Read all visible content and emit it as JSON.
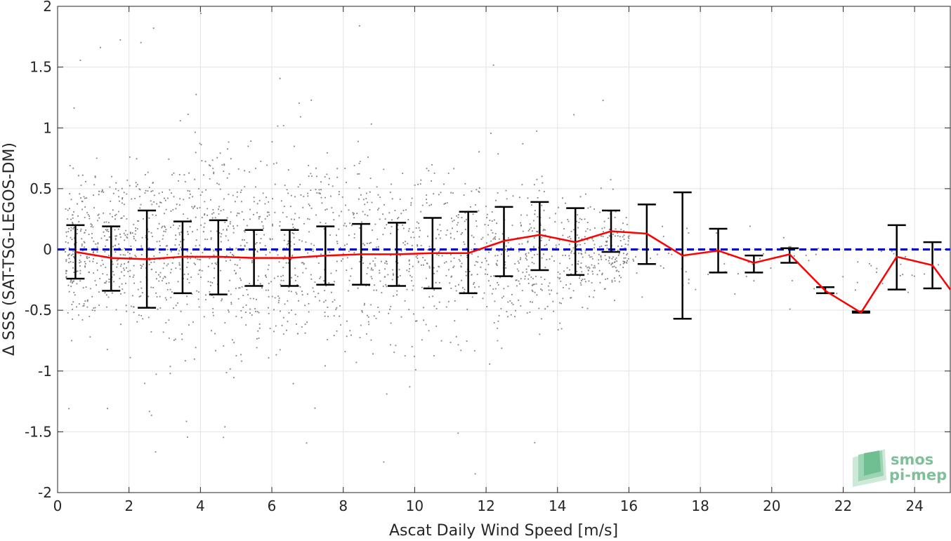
{
  "chart_data": {
    "type": "scatter",
    "xlabel": "Ascat Daily Wind Speed [m/s]",
    "ylabel": "Δ SSS (SAT-TSG-LEGOS-DM)",
    "xlim": [
      0,
      25
    ],
    "ylim": [
      -2,
      2
    ],
    "xticks": [
      0,
      2,
      4,
      6,
      8,
      10,
      12,
      14,
      16,
      18,
      20,
      22,
      24
    ],
    "yticks": [
      2,
      1.5,
      1,
      0.5,
      0,
      -0.5,
      -1,
      -1.5,
      -2
    ],
    "xtick_labels": [
      "0",
      "2",
      "4",
      "6",
      "8",
      "10",
      "12",
      "14",
      "16",
      "18",
      "20",
      "22",
      "24"
    ],
    "ytick_labels": [
      "2",
      "1.5",
      "1",
      "0.5",
      "0",
      "-0.5",
      "-1",
      "-1.5",
      "-2"
    ],
    "grid": true,
    "series": [
      {
        "kind": "scatter-cloud",
        "color": "#808080",
        "description_bins": [
          {
            "x": 0.5,
            "core": [
              -0.5,
              0.5
            ]
          },
          {
            "x": 2,
            "core": [
              -0.6,
              0.6
            ]
          },
          {
            "x": 4,
            "core": [
              -0.7,
              0.75
            ]
          },
          {
            "x": 6,
            "core": [
              -0.75,
              0.75
            ]
          },
          {
            "x": 8,
            "core": [
              -0.75,
              0.7
            ]
          },
          {
            "x": 10,
            "core": [
              -0.7,
              0.65
            ]
          },
          {
            "x": 12,
            "core": [
              -0.6,
              0.5
            ]
          },
          {
            "x": 14,
            "core": [
              -0.5,
              0.4
            ]
          },
          {
            "x": 16,
            "core": [
              -0.2,
              0.3
            ]
          }
        ]
      },
      {
        "kind": "errorbar-mean",
        "color_line": "#ff0000",
        "color_bars": "#000000",
        "x": [
          0.5,
          1.5,
          2.5,
          3.5,
          4.5,
          5.5,
          6.5,
          7.5,
          8.5,
          9.5,
          10.5,
          11.5,
          12.5,
          13.5,
          14.5,
          15.5,
          16.5,
          17.5,
          18.5,
          19.5,
          20.5,
          21.5,
          22.5,
          23.5,
          24.5,
          25
        ],
        "mean": [
          -0.02,
          -0.07,
          -0.08,
          -0.06,
          -0.06,
          -0.07,
          -0.07,
          -0.05,
          -0.04,
          -0.04,
          -0.03,
          -0.03,
          0.07,
          0.12,
          0.06,
          0.15,
          0.13,
          -0.05,
          -0.01,
          -0.11,
          -0.04,
          -0.34,
          -0.52,
          -0.06,
          -0.13,
          -0.33
        ],
        "lower": [
          -0.24,
          -0.34,
          -0.48,
          -0.36,
          -0.37,
          -0.3,
          -0.3,
          -0.29,
          -0.29,
          -0.3,
          -0.32,
          -0.36,
          -0.22,
          -0.17,
          -0.21,
          -0.02,
          -0.12,
          -0.57,
          -0.19,
          -0.19,
          -0.11,
          -0.36,
          -0.52,
          -0.33,
          -0.32,
          null
        ],
        "upper": [
          0.2,
          0.19,
          0.32,
          0.23,
          0.24,
          0.16,
          0.16,
          0.19,
          0.21,
          0.22,
          0.26,
          0.31,
          0.35,
          0.39,
          0.34,
          0.32,
          0.37,
          0.47,
          0.17,
          -0.05,
          0.01,
          -0.31,
          -0.51,
          0.2,
          0.06,
          null
        ]
      },
      {
        "kind": "reference-line",
        "y": 0,
        "color": "#0000cc",
        "style": "dashed"
      }
    ]
  },
  "logo": {
    "line1": "smos",
    "line2": "pi-mep",
    "color": "#7fbf9a"
  }
}
